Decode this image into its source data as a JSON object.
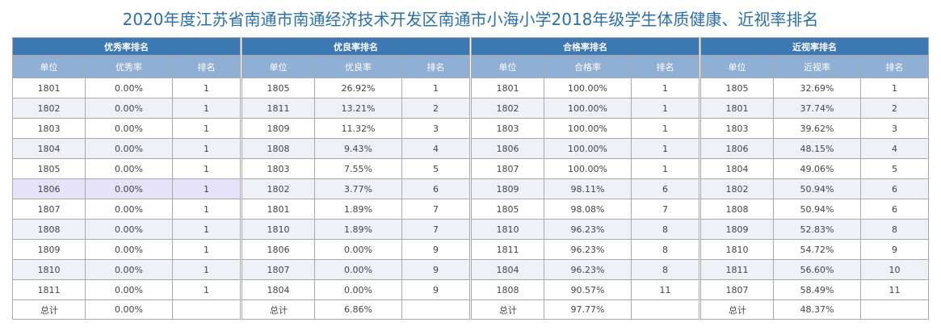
{
  "title": "2020年度江苏省南通市南通经济技术开发区南通市小海小学2018年级学生体质健康、近视率排名",
  "tables": [
    {
      "caption": "优秀率排名",
      "headers": [
        "单位",
        "优秀率",
        "排名"
      ],
      "rows": [
        [
          "1801",
          "0.00%",
          "1"
        ],
        [
          "1802",
          "0.00%",
          "1"
        ],
        [
          "1803",
          "0.00%",
          "1"
        ],
        [
          "1804",
          "0.00%",
          "1"
        ],
        [
          "1805",
          "0.00%",
          "1"
        ],
        [
          "1806",
          "0.00%",
          "1"
        ],
        [
          "1807",
          "0.00%",
          "1"
        ],
        [
          "1808",
          "0.00%",
          "1"
        ],
        [
          "1809",
          "0.00%",
          "1"
        ],
        [
          "1810",
          "0.00%",
          "1"
        ],
        [
          "1811",
          "0.00%",
          "1"
        ]
      ],
      "total": [
        "总计",
        "0.00%",
        ""
      ]
    },
    {
      "caption": "优良率排名",
      "headers": [
        "单位",
        "优良率",
        "排名"
      ],
      "rows": [
        [
          "1805",
          "26.92%",
          "1"
        ],
        [
          "1811",
          "13.21%",
          "2"
        ],
        [
          "1809",
          "11.32%",
          "3"
        ],
        [
          "1808",
          "9.43%",
          "4"
        ],
        [
          "1803",
          "7.55%",
          "5"
        ],
        [
          "1802",
          "3.77%",
          "6"
        ],
        [
          "1801",
          "1.89%",
          "7"
        ],
        [
          "1810",
          "1.89%",
          "7"
        ],
        [
          "1806",
          "0.00%",
          "9"
        ],
        [
          "1807",
          "0.00%",
          "9"
        ],
        [
          "1804",
          "0.00%",
          "9"
        ]
      ],
      "total": [
        "总计",
        "6.86%",
        ""
      ]
    },
    {
      "caption": "合格率排名",
      "headers": [
        "单位",
        "合格率",
        "排名"
      ],
      "rows": [
        [
          "1801",
          "100.00%",
          "1"
        ],
        [
          "1802",
          "100.00%",
          "1"
        ],
        [
          "1803",
          "100.00%",
          "1"
        ],
        [
          "1806",
          "100.00%",
          "1"
        ],
        [
          "1807",
          "100.00%",
          "1"
        ],
        [
          "1809",
          "98.11%",
          "6"
        ],
        [
          "1805",
          "98.08%",
          "7"
        ],
        [
          "1810",
          "96.23%",
          "8"
        ],
        [
          "1811",
          "96.23%",
          "8"
        ],
        [
          "1804",
          "96.23%",
          "8"
        ],
        [
          "1808",
          "90.57%",
          "11"
        ]
      ],
      "total": [
        "总计",
        "97.77%",
        ""
      ]
    },
    {
      "caption": "近视率排名",
      "headers": [
        "单位",
        "近视率",
        "排名"
      ],
      "rows": [
        [
          "1805",
          "32.69%",
          "1"
        ],
        [
          "1801",
          "37.74%",
          "2"
        ],
        [
          "1803",
          "39.62%",
          "3"
        ],
        [
          "1806",
          "48.15%",
          "4"
        ],
        [
          "1804",
          "49.06%",
          "5"
        ],
        [
          "1802",
          "50.94%",
          "6"
        ],
        [
          "1808",
          "50.94%",
          "6"
        ],
        [
          "1809",
          "52.83%",
          "8"
        ],
        [
          "1810",
          "54.72%",
          "9"
        ],
        [
          "1811",
          "56.60%",
          "10"
        ],
        [
          "1807",
          "58.49%",
          "11"
        ]
      ],
      "total": [
        "总计",
        "48.37%",
        ""
      ]
    }
  ],
  "highlight": {
    "table": 0,
    "row": 5,
    "color": "#e5e2fa"
  },
  "colors": {
    "title": "#2b6fa8",
    "caption_bg": "#3c78b4",
    "header_bg": "#8fb0d4"
  }
}
